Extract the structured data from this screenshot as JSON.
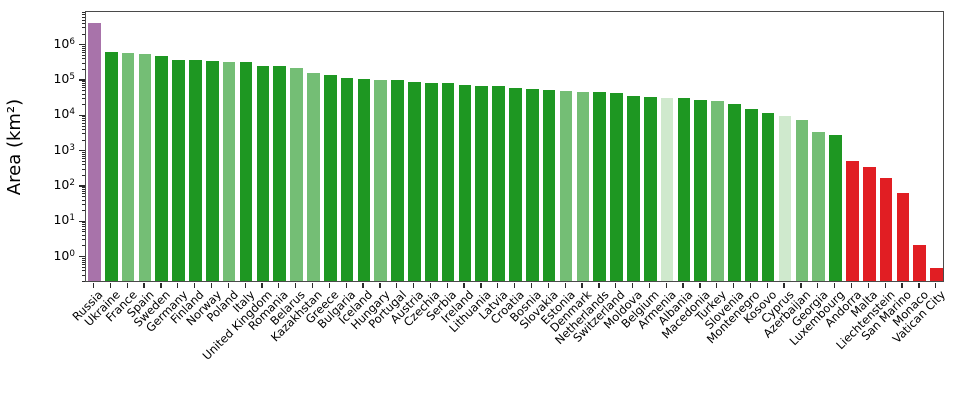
{
  "figure": {
    "ylabel": "Area (km²)"
  },
  "y_axis": {
    "base": "10",
    "major_exponents": [
      0,
      1,
      2,
      3,
      4,
      5,
      6
    ]
  },
  "colors": {
    "dark_green": "#1e9722",
    "medium_green": "#74be75",
    "pale_green": "#cfe9cd",
    "purple": "#a873aa",
    "red": "#e11e23",
    "spine": "#4a4a4a",
    "tick": "#2b2b2b",
    "background": "#ffffff"
  },
  "chart_data": {
    "type": "bar",
    "title": "",
    "xlabel": "",
    "ylabel": "Area (km²)",
    "yscale": "log",
    "ylim": [
      0.19,
      9100000
    ],
    "grid": false,
    "legend": "none",
    "categories": [
      "Russia",
      "Ukraine",
      "France",
      "Spain",
      "Sweden",
      "Germany",
      "Finland",
      "Norway",
      "Poland",
      "Italy",
      "United Kingdom",
      "Romania",
      "Belarus",
      "Kazakhstan",
      "Greece",
      "Bulgaria",
      "Iceland",
      "Hungary",
      "Portugal",
      "Austria",
      "Czechia",
      "Serbia",
      "Ireland",
      "Lithuania",
      "Latvia",
      "Croatia",
      "Bosnia",
      "Slovakia",
      "Estonia",
      "Denmark",
      "Netherlands",
      "Switzerland",
      "Moldova",
      "Belgium",
      "Armenia",
      "Albania",
      "Macedonia",
      "Turkey",
      "Slovenia",
      "Montenegro",
      "Kosovo",
      "Cyprus",
      "Azerbaijan",
      "Georgia",
      "Luxembourg",
      "Andorra",
      "Malta",
      "Liechtenstein",
      "San Marino",
      "Monaco",
      "Vatican City"
    ],
    "values": [
      3972400,
      603500,
      551695,
      505990,
      450295,
      357114,
      338424,
      323802,
      312696,
      301340,
      242495,
      238397,
      207600,
      148000,
      131957,
      110879,
      103000,
      93028,
      92090,
      83871,
      78865,
      77474,
      70273,
      65300,
      64559,
      56594,
      51209,
      49037,
      45227,
      43094,
      41850,
      41284,
      33846,
      30528,
      29743,
      28748,
      25713,
      23764,
      20273,
      13812,
      10887,
      9251,
      6960,
      3100,
      2586,
      468,
      316,
      160,
      61,
      2.02,
      0.44
    ],
    "bar_shades": [
      "purple",
      "dark_green",
      "medium_green",
      "medium_green",
      "dark_green",
      "dark_green",
      "dark_green",
      "dark_green",
      "medium_green",
      "dark_green",
      "dark_green",
      "dark_green",
      "medium_green",
      "medium_green",
      "dark_green",
      "dark_green",
      "dark_green",
      "medium_green",
      "dark_green",
      "dark_green",
      "dark_green",
      "dark_green",
      "dark_green",
      "dark_green",
      "dark_green",
      "dark_green",
      "dark_green",
      "dark_green",
      "medium_green",
      "medium_green",
      "dark_green",
      "dark_green",
      "dark_green",
      "dark_green",
      "pale_green",
      "dark_green",
      "dark_green",
      "medium_green",
      "dark_green",
      "dark_green",
      "dark_green",
      "pale_green",
      "medium_green",
      "medium_green",
      "dark_green",
      "red",
      "red",
      "red",
      "red",
      "red",
      "red"
    ]
  }
}
